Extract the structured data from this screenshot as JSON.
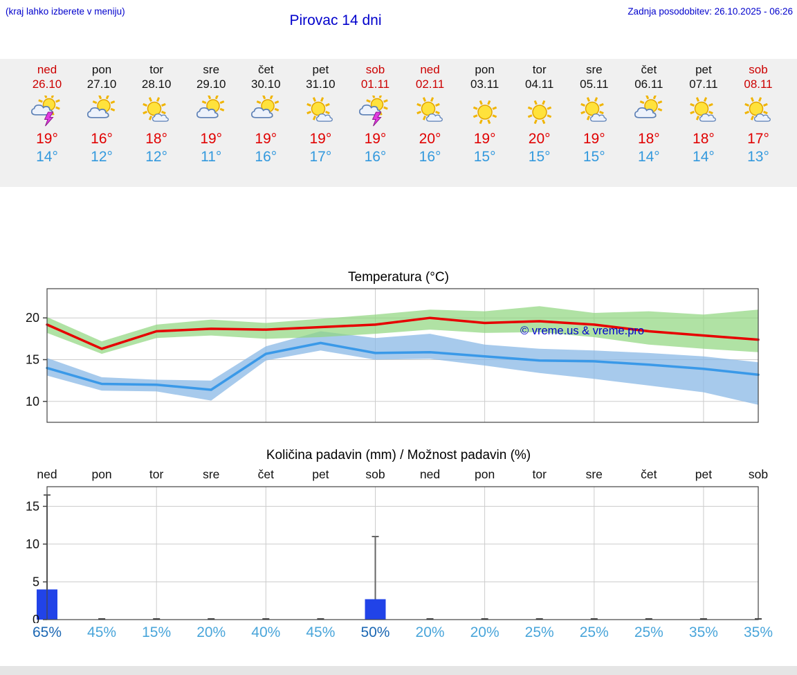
{
  "page": {
    "note_left": "(kraj lahko izberete v meniju)",
    "title": "Pirovac 14 dni",
    "last_update": "Zadnja posodobitev: 26.10.2025 - 06:26"
  },
  "colors": {
    "header_blue": "#0000cc",
    "weekend_red": "#cc0000",
    "high_temp_red": "#e00000",
    "low_temp_blue": "#3399dd",
    "strip_background": "#f0f0f0",
    "probability_light": "#49a5da",
    "probability_strong": "#1b67b3"
  },
  "forecast": {
    "days": [
      {
        "name": "ned",
        "date": "26.10",
        "weekend": true,
        "icon": "thunderstorm",
        "high": "19°",
        "low": "14°"
      },
      {
        "name": "pon",
        "date": "27.10",
        "weekend": false,
        "icon": "partly-cloudy",
        "high": "16°",
        "low": "12°"
      },
      {
        "name": "tor",
        "date": "28.10",
        "weekend": false,
        "icon": "mostly-sunny",
        "high": "18°",
        "low": "12°"
      },
      {
        "name": "sre",
        "date": "29.10",
        "weekend": false,
        "icon": "partly-cloudy",
        "high": "19°",
        "low": "11°"
      },
      {
        "name": "čet",
        "date": "30.10",
        "weekend": false,
        "icon": "partly-cloudy",
        "high": "19°",
        "low": "16°"
      },
      {
        "name": "pet",
        "date": "31.10",
        "weekend": false,
        "icon": "mostly-sunny",
        "high": "19°",
        "low": "17°"
      },
      {
        "name": "sob",
        "date": "01.11",
        "weekend": true,
        "icon": "thunderstorm",
        "high": "19°",
        "low": "16°"
      },
      {
        "name": "ned",
        "date": "02.11",
        "weekend": true,
        "icon": "mostly-sunny",
        "high": "20°",
        "low": "16°"
      },
      {
        "name": "pon",
        "date": "03.11",
        "weekend": false,
        "icon": "sunny",
        "high": "19°",
        "low": "15°"
      },
      {
        "name": "tor",
        "date": "04.11",
        "weekend": false,
        "icon": "sunny",
        "high": "20°",
        "low": "15°"
      },
      {
        "name": "sre",
        "date": "05.11",
        "weekend": false,
        "icon": "mostly-sunny",
        "high": "19°",
        "low": "15°"
      },
      {
        "name": "čet",
        "date": "06.11",
        "weekend": false,
        "icon": "partly-cloudy",
        "high": "18°",
        "low": "14°"
      },
      {
        "name": "pet",
        "date": "07.11",
        "weekend": false,
        "icon": "mostly-sunny",
        "high": "18°",
        "low": "14°"
      },
      {
        "name": "sob",
        "date": "08.11",
        "weekend": true,
        "icon": "mostly-sunny",
        "high": "17°",
        "low": "13°"
      }
    ]
  },
  "chart_data": [
    {
      "type": "line",
      "title": "Temperatura (°C)",
      "categories": [
        "ned",
        "pon",
        "tor",
        "sre",
        "čet",
        "pet",
        "sob",
        "ned",
        "pon",
        "tor",
        "sre",
        "čet",
        "pet",
        "sob"
      ],
      "ylim": [
        7.5,
        23.5
      ],
      "yticks": [
        10,
        15,
        20
      ],
      "grid_day_indices": [
        2,
        4,
        6,
        8,
        10,
        12
      ],
      "legend_position": "none",
      "series": [
        {
          "name": "max-temperature",
          "color": "#e60000",
          "values": [
            19.2,
            16.3,
            18.4,
            18.7,
            18.6,
            18.9,
            19.2,
            20.0,
            19.4,
            19.6,
            19.2,
            18.4,
            17.9,
            17.4
          ]
        },
        {
          "name": "min-temperature",
          "color": "#3a99e8",
          "values": [
            14.0,
            12.1,
            12.0,
            11.4,
            15.7,
            17.0,
            15.8,
            15.9,
            15.4,
            14.9,
            14.8,
            14.4,
            13.9,
            13.2
          ]
        }
      ],
      "bands": [
        {
          "name": "min-uncertainty",
          "color": "#8ab8e6",
          "opacity": 0.75,
          "upper": [
            15.2,
            12.9,
            12.6,
            12.5,
            16.6,
            18.4,
            17.6,
            18.1,
            16.8,
            16.3,
            16.1,
            15.8,
            15.4,
            14.7
          ],
          "lower": [
            13.1,
            11.3,
            11.2,
            10.1,
            14.9,
            16.1,
            15.0,
            15.1,
            14.3,
            13.4,
            12.7,
            11.9,
            11.1,
            9.6
          ]
        },
        {
          "name": "max-uncertainty",
          "color": "#8fd67e",
          "opacity": 0.7,
          "upper": [
            20.1,
            17.2,
            19.2,
            19.8,
            19.4,
            19.9,
            20.4,
            21.0,
            20.8,
            21.4,
            20.6,
            20.8,
            20.4,
            21.0
          ],
          "lower": [
            18.2,
            15.7,
            17.6,
            17.9,
            17.5,
            17.7,
            18.1,
            18.6,
            18.2,
            18.3,
            17.7,
            16.8,
            16.3,
            15.9
          ]
        }
      ],
      "watermark": "© vreme.us & vreme.pro"
    },
    {
      "type": "bar",
      "title": "Količina padavin (mm) / Možnost padavin (%)",
      "categories": [
        "ned",
        "pon",
        "tor",
        "sre",
        "čet",
        "pet",
        "sob",
        "ned",
        "pon",
        "tor",
        "sre",
        "čet",
        "pet",
        "sob"
      ],
      "ylim": [
        0,
        17.6
      ],
      "yticks": [
        0,
        5,
        10,
        15
      ],
      "grid_day_indices": [
        2,
        4,
        6,
        8,
        10,
        12
      ],
      "bar_color": "#2143e8",
      "values": [
        4.0,
        0,
        0,
        0,
        0,
        0,
        2.7,
        0,
        0,
        0,
        0,
        0,
        0,
        0
      ],
      "whisker_max": [
        16.5,
        0,
        0,
        0,
        0,
        0,
        11.0,
        0,
        0,
        0,
        0,
        0,
        0,
        0
      ],
      "probabilities": [
        {
          "label": "65%",
          "strong": true
        },
        {
          "label": "45%",
          "strong": false
        },
        {
          "label": "15%",
          "strong": false
        },
        {
          "label": "20%",
          "strong": false
        },
        {
          "label": "40%",
          "strong": false
        },
        {
          "label": "45%",
          "strong": false
        },
        {
          "label": "50%",
          "strong": true
        },
        {
          "label": "20%",
          "strong": false
        },
        {
          "label": "20%",
          "strong": false
        },
        {
          "label": "25%",
          "strong": false
        },
        {
          "label": "25%",
          "strong": false
        },
        {
          "label": "25%",
          "strong": false
        },
        {
          "label": "35%",
          "strong": false
        },
        {
          "label": "35%",
          "strong": false
        }
      ]
    }
  ]
}
